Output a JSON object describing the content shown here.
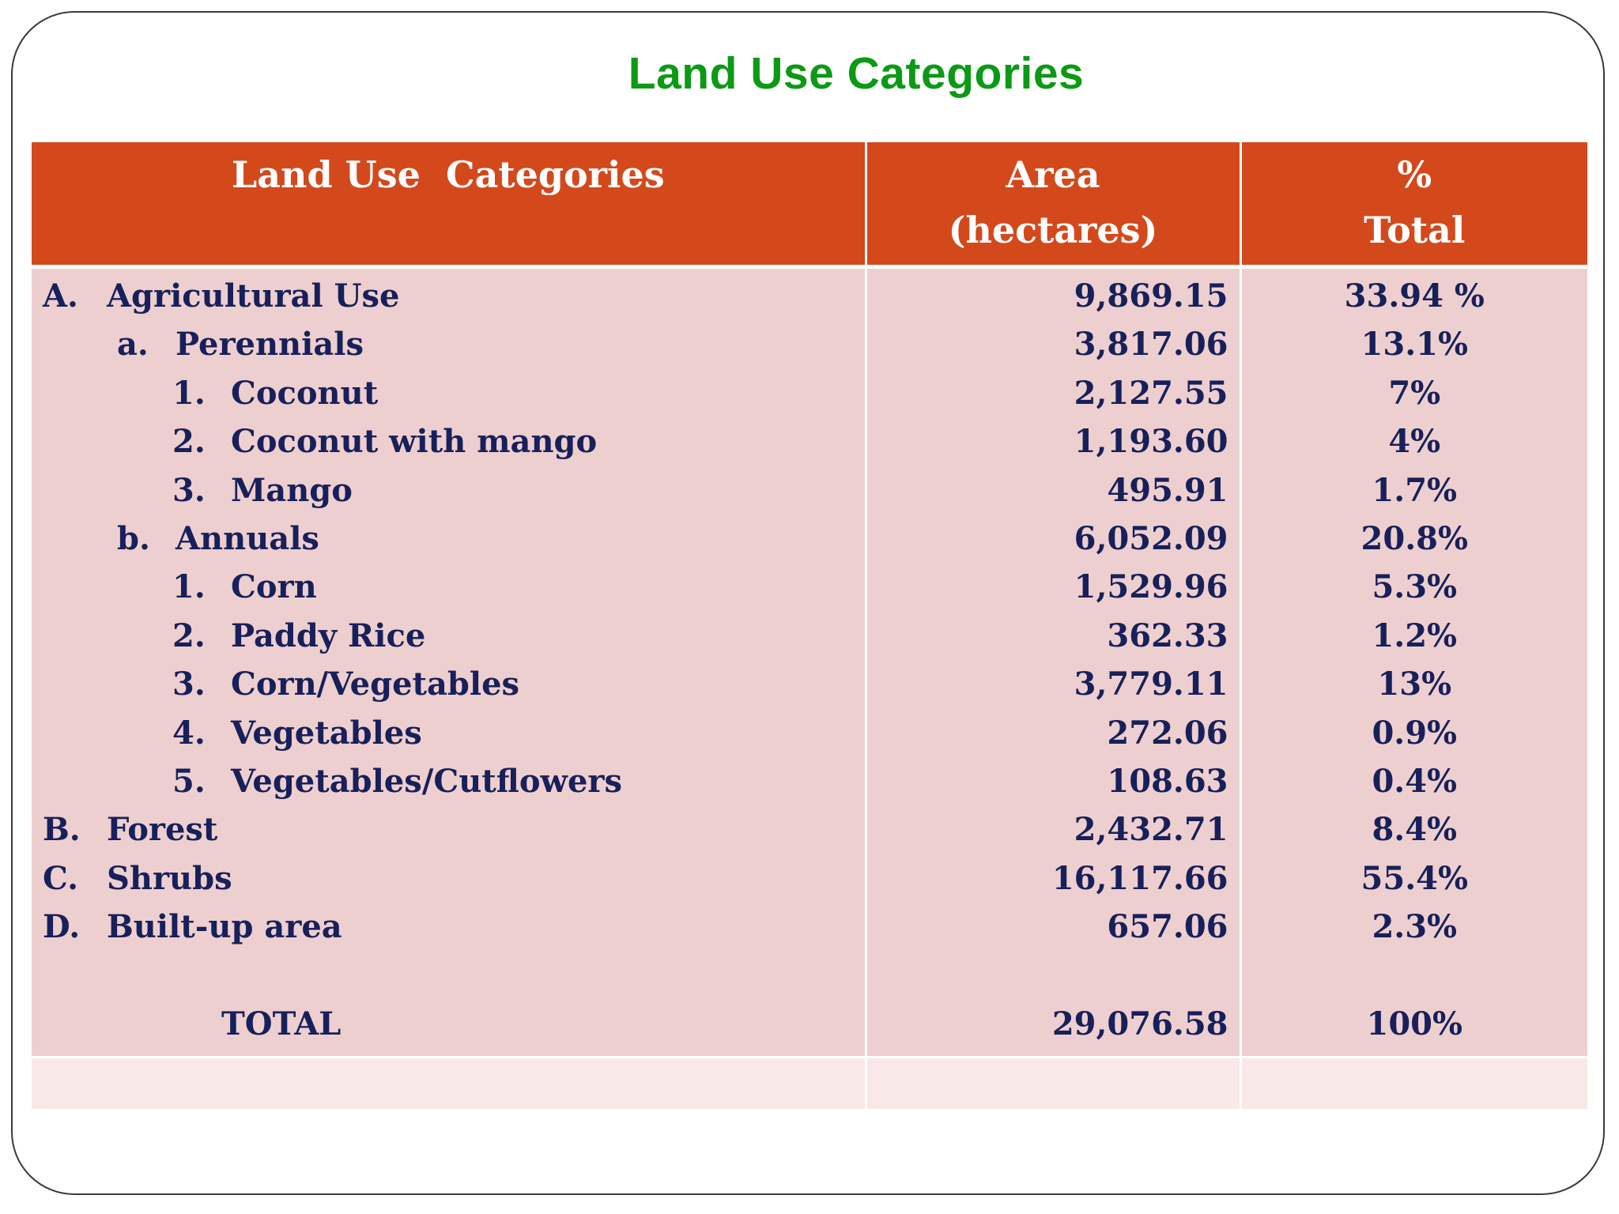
{
  "slide": {
    "title": "Land Use Categories"
  },
  "table": {
    "headers": {
      "category": "Land Use  Categories",
      "area_line1": "Area",
      "area_line2": "(hectares)",
      "pct_line1": "%",
      "pct_line2": "Total"
    },
    "rows": [
      {
        "marker": "A.",
        "label": "Agricultural Use",
        "area": "9,869.15",
        "pct": "33.94 %"
      },
      {
        "marker": "a.",
        "label": "Perennials",
        "area": "3,817.06",
        "pct": "13.1%"
      },
      {
        "marker": "1.",
        "label": "Coconut",
        "area": "2,127.55",
        "pct": "7%"
      },
      {
        "marker": "2.",
        "label": "Coconut with mango",
        "area": "1,193.60",
        "pct": "4%"
      },
      {
        "marker": "3.",
        "label": "Mango",
        "area": "495.91",
        "pct": "1.7%"
      },
      {
        "marker": "b.",
        "label": "Annuals",
        "area": "6,052.09",
        "pct": "20.8%"
      },
      {
        "marker": "1.",
        "label": "Corn",
        "area": "1,529.96",
        "pct": "5.3%"
      },
      {
        "marker": "2.",
        "label": "Paddy Rice",
        "area": "362.33",
        "pct": "1.2%"
      },
      {
        "marker": "3.",
        "label": "Corn/Vegetables",
        "area": "3,779.11",
        "pct": "13%"
      },
      {
        "marker": "4.",
        "label": "Vegetables",
        "area": "272.06",
        "pct": "0.9%"
      },
      {
        "marker": "5.",
        "label": "Vegetables/Cutflowers",
        "area": "108.63",
        "pct": "0.4%"
      },
      {
        "marker": "B.",
        "label": "Forest",
        "area": "2,432.71",
        "pct": "8.4%"
      },
      {
        "marker": "C.",
        "label": "Shrubs",
        "area": "16,117.66",
        "pct": "55.4%"
      },
      {
        "marker": "D.",
        "label": "Built-up area",
        "area": "657.06",
        "pct": "2.3%"
      }
    ],
    "total": {
      "label": "TOTAL",
      "area": "29,076.58",
      "pct": "100%"
    }
  },
  "colors": {
    "title": "#0c9a14",
    "header_bg": "#d3491c",
    "body_bg": "#eecfcf",
    "footer_bg": "#f8e8e8",
    "text": "#17205a"
  }
}
